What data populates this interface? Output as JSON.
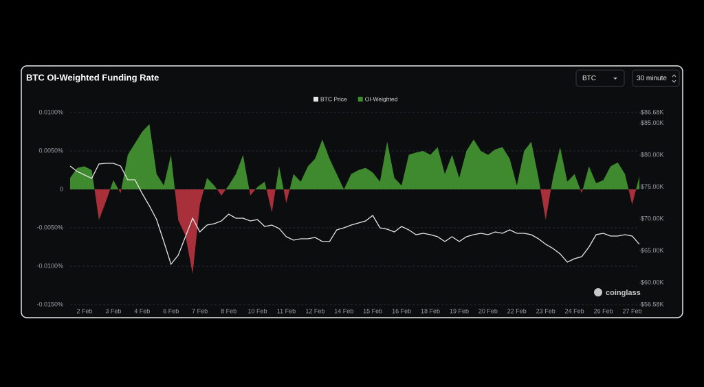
{
  "chart_data": {
    "type": "area-line",
    "title": "BTC OI-Weighted Funding Rate",
    "categories": [
      null,
      null,
      "2 Feb",
      null,
      null,
      null,
      "3 Feb",
      null,
      null,
      null,
      "4 Feb",
      null,
      null,
      null,
      "6 Feb",
      null,
      null,
      null,
      "7 Feb",
      null,
      null,
      null,
      "8 Feb",
      null,
      null,
      null,
      "10 Feb",
      null,
      null,
      null,
      "11 Feb",
      null,
      null,
      null,
      "12 Feb",
      null,
      null,
      null,
      "14 Feb",
      null,
      null,
      null,
      "15 Feb",
      null,
      null,
      null,
      "16 Feb",
      null,
      null,
      null,
      "18 Feb",
      null,
      null,
      null,
      "19 Feb",
      null,
      null,
      null,
      "20 Feb",
      null,
      null,
      null,
      "22 Feb",
      null,
      null,
      null,
      "23 Feb",
      null,
      null,
      null,
      "24 Feb",
      null,
      null,
      null,
      "26 Feb",
      null,
      null,
      null,
      "27 Feb",
      null
    ],
    "series": [
      {
        "name": "BTC Price",
        "color": "#e6e6e6",
        "axis": "y2",
        "values": [
          78295,
          77435,
          76897,
          76360,
          78617,
          78725,
          78725,
          78295,
          76145,
          76145,
          73995,
          72060,
          69910,
          66470,
          62922,
          64320,
          67222,
          70125,
          67975,
          69050,
          69265,
          69695,
          70770,
          70125,
          70125,
          69695,
          69910,
          68835,
          69050,
          68512,
          67222,
          66685,
          66900,
          66900,
          67115,
          66470,
          66470,
          68297,
          68620,
          69050,
          69372,
          69695,
          70555,
          68620,
          68405,
          67975,
          68835,
          68297,
          67545,
          67760,
          67545,
          67222,
          66470,
          67222,
          66470,
          67222,
          67545,
          67760,
          67545,
          67975,
          67760,
          68297,
          67760,
          67760,
          67545,
          66900,
          66040,
          65395,
          64535,
          63245,
          63782,
          64105,
          65610,
          67545,
          67760,
          67330,
          67330,
          67545,
          67330,
          66040
        ]
      },
      {
        "name": "OI-Weighted",
        "color": "#3f8a2e",
        "negative_color": "#a8303a",
        "values": [
          0.0015,
          0.0028,
          0.003,
          0.0025,
          -0.004,
          -0.0015,
          0.0012,
          -0.0005,
          0.0045,
          0.006,
          0.0075,
          0.0085,
          0.002,
          0.0005,
          0.0045,
          -0.004,
          -0.006,
          -0.011,
          -0.002,
          0.0015,
          0.0005,
          -0.0008,
          0.0005,
          0.002,
          0.0045,
          -0.0008,
          0.0003,
          0.001,
          -0.003,
          0.003,
          -0.0018,
          0.002,
          0.001,
          0.003,
          0.004,
          0.0065,
          0.004,
          0.002,
          0,
          0.002,
          0.0025,
          0.0028,
          0.0022,
          0.001,
          0.0062,
          0.0015,
          0.0005,
          0.0045,
          0.0048,
          0.005,
          0.0045,
          0.0055,
          0.002,
          0.0045,
          0.0015,
          0.005,
          0.0065,
          0.005,
          0.0045,
          0.0052,
          0.0055,
          0.004,
          0.0005,
          0.005,
          0.0062,
          0.0015,
          -0.004,
          0.0015,
          0.0055,
          0.001,
          0.002,
          -0.0005,
          0.003,
          0.0008,
          0.0012,
          0.003,
          0.0035,
          0.002,
          -0.002,
          0.0017
        ]
      }
    ],
    "ylim": [
      -0.015,
      0.01
    ],
    "yticks": [
      {
        "value": 0.01,
        "label": "0.0100%"
      },
      {
        "value": 0.005,
        "label": "0.0050%"
      },
      0,
      {
        "value": -0.005,
        "label": "-0.0050%"
      },
      {
        "value": -0.01,
        "label": "-0.0100%"
      },
      {
        "value": -0.015,
        "label": "-0.0150%"
      }
    ],
    "y2lim": [
      56580,
      86680
    ],
    "y2ticks": [
      {
        "value": 86680,
        "label": "$86.68K"
      },
      {
        "value": 85000,
        "label": "$85.00K"
      },
      {
        "value": 80000,
        "label": "$80.00K"
      },
      {
        "value": 75000,
        "label": "$75.00K"
      },
      {
        "value": 70000,
        "label": "$70.00K"
      },
      {
        "value": 65000,
        "label": "$65.00K"
      },
      {
        "value": 60000,
        "label": "$60.00K"
      },
      {
        "value": 56580,
        "label": "$56.58K"
      }
    ],
    "grid": true,
    "legend": "top"
  },
  "controls": {
    "symbol": "BTC",
    "interval": "30 minute",
    "watermark": "coinglass"
  }
}
